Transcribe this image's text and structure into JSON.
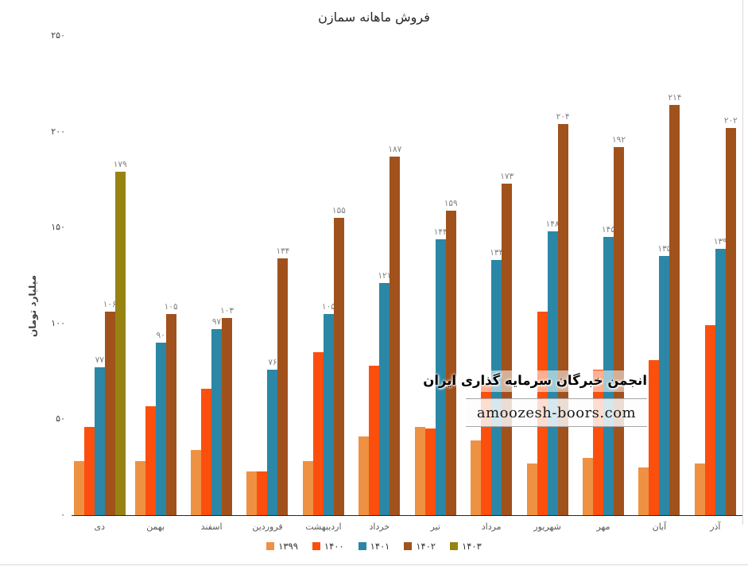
{
  "watermark": {
    "line1": "انجمن خبرگان سرمایه گذاری ایران",
    "url": "amoozesh-boors.com"
  },
  "chart_data": {
    "type": "bar",
    "title": "فروش ماهانه سمازن",
    "ylabel": "میلیارد تومان",
    "xlabel": "",
    "ylim": [
      0,
      250
    ],
    "grid": false,
    "legend_position": "bottom",
    "yticks": [
      {
        "value": 0,
        "label": "۰"
      },
      {
        "value": 50,
        "label": "۵۰"
      },
      {
        "value": 100,
        "label": "۱۰۰"
      },
      {
        "value": 150,
        "label": "۱۵۰"
      },
      {
        "value": 200,
        "label": "۲۰۰"
      },
      {
        "value": 250,
        "label": "۲۵۰"
      }
    ],
    "categories": [
      "دی",
      "بهمن",
      "اسفند",
      "فروردین",
      "اردیبهشت",
      "خرداد",
      "تیر",
      "مرداد",
      "شهریور",
      "مهر",
      "آبان",
      "آذر"
    ],
    "series": [
      {
        "name": "۱۳۹۹",
        "color": "#EF9143",
        "values": [
          28,
          28,
          34,
          23,
          28,
          41,
          46,
          39,
          27,
          30,
          25,
          27
        ],
        "labels": null
      },
      {
        "name": "۱۴۰۰",
        "color": "#FC4F0E",
        "values": [
          46,
          57,
          66,
          23,
          85,
          78,
          45,
          69,
          106,
          76,
          81,
          99
        ],
        "labels": null
      },
      {
        "name": "۱۴۰۱",
        "color": "#2B87A5",
        "values": [
          77,
          90,
          97,
          76,
          105,
          121,
          144,
          133,
          148,
          145,
          135,
          139
        ],
        "labels": [
          "۷۷",
          "۹۰",
          "۹۷",
          "۷۶",
          "۱۰۵",
          "۱۲۱",
          "۱۴۴",
          "۱۳۳",
          "۱۴۸",
          "۱۴۵",
          "۱۳۵",
          "۱۳۹"
        ]
      },
      {
        "name": "۱۴۰۲",
        "color": "#A1511C",
        "values": [
          106,
          105,
          103,
          134,
          155,
          187,
          159,
          173,
          204,
          192,
          214,
          202
        ],
        "labels": [
          "۱۰۶",
          "۱۰۵",
          "۱۰۳",
          "۱۳۴",
          "۱۵۵",
          "۱۸۷",
          "۱۵۹",
          "۱۷۳",
          "۲۰۴",
          "۱۹۲",
          "۲۱۴",
          "۲۰۲"
        ]
      },
      {
        "name": "۱۴۰۳",
        "color": "#978312",
        "values": [
          179,
          null,
          null,
          null,
          null,
          null,
          null,
          null,
          null,
          null,
          null,
          null
        ],
        "labels": [
          "۱۷۹",
          null,
          null,
          null,
          null,
          null,
          null,
          null,
          null,
          null,
          null,
          null
        ]
      }
    ]
  }
}
